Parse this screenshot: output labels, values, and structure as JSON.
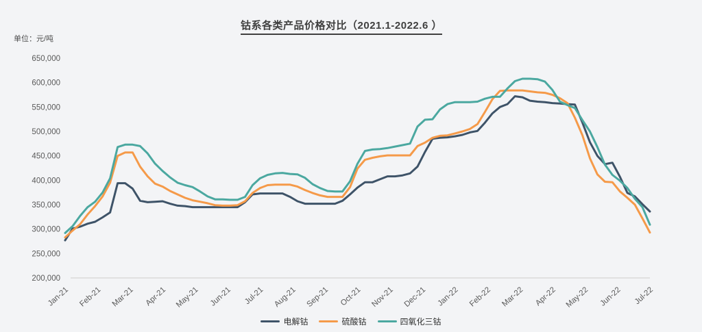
{
  "chart_data": {
    "type": "line",
    "title": "钴系各类产品价格对比（2021.1-2022.6 ）",
    "unit_label": "单位：元/吨",
    "legend_position": "bottom-center",
    "grid": false,
    "background_color": "#f3f4f6",
    "axis_line_color": "#d9d9d9",
    "axis_text_color": "#595959",
    "y_axis": {
      "min": 200000,
      "max": 650000,
      "step": 50000,
      "tick_labels": [
        "650,000",
        "600,000",
        "550,000",
        "500,000",
        "450,000",
        "400,000",
        "350,000",
        "300,000",
        "250,000",
        "200,000"
      ]
    },
    "x_axis": {
      "tick_labels": [
        "Jan-21",
        "Feb-21",
        "Mar-21",
        "Apr-21",
        "May-21",
        "Jun-21",
        "Jul-21",
        "Aug-21",
        "Sep-21",
        "Oct-21",
        "Nov-21",
        "Dec-21",
        "Jan-22",
        "Feb-22",
        "Mar-22",
        "Apr-22",
        "May-22",
        "Jun-22",
        "Jul-22"
      ],
      "sampling": "weekly points from Jan-2021 to Jul-2022 (values estimated from plot)"
    },
    "series": [
      {
        "name": "电解钴",
        "color": "#3E5368",
        "values": [
          277000,
          301000,
          305000,
          311000,
          315000,
          324000,
          334000,
          394000,
          394000,
          383000,
          358000,
          355000,
          356000,
          357000,
          352000,
          348000,
          347000,
          345000,
          345000,
          345000,
          345000,
          345000,
          345000,
          345000,
          355000,
          371000,
          373000,
          373000,
          373000,
          373000,
          366000,
          357000,
          352000,
          352000,
          352000,
          352000,
          352000,
          358000,
          371000,
          385000,
          396000,
          396000,
          402000,
          408000,
          408000,
          410000,
          414000,
          428000,
          458000,
          485000,
          487000,
          488000,
          490000,
          493000,
          498000,
          501000,
          518000,
          537000,
          550000,
          556000,
          572000,
          570000,
          563000,
          561000,
          560000,
          558000,
          557000,
          556000,
          555000,
          518000,
          478000,
          450000,
          433000,
          436000,
          407000,
          374000,
          367000,
          351000,
          336000
        ]
      },
      {
        "name": "硫酸钴",
        "color": "#F59A49",
        "values": [
          283000,
          297000,
          310000,
          330000,
          347000,
          367000,
          395000,
          450000,
          457000,
          457000,
          428000,
          408000,
          393000,
          387000,
          378000,
          371000,
          364000,
          359000,
          356000,
          353000,
          349000,
          348000,
          348000,
          349000,
          357000,
          374000,
          384000,
          390000,
          391000,
          391000,
          391000,
          387000,
          380000,
          374000,
          369000,
          366000,
          366000,
          366000,
          386000,
          424000,
          442000,
          446000,
          449000,
          451000,
          451000,
          451000,
          451000,
          470000,
          477000,
          487000,
          491000,
          492000,
          496000,
          500000,
          505000,
          515000,
          540000,
          566000,
          583000,
          584000,
          584000,
          584000,
          582000,
          580000,
          579000,
          575000,
          568000,
          558000,
          528000,
          492000,
          445000,
          412000,
          397000,
          396000,
          377000,
          364000,
          350000,
          322000,
          293000
        ]
      },
      {
        "name": "四氧化三钴",
        "color": "#4BA8A0",
        "values": [
          292000,
          306000,
          327000,
          345000,
          356000,
          375000,
          404000,
          468000,
          473000,
          473000,
          470000,
          455000,
          434000,
          419000,
          406000,
          395000,
          390000,
          386000,
          377000,
          367000,
          361000,
          361000,
          360000,
          360000,
          366000,
          390000,
          404000,
          411000,
          414000,
          415000,
          413000,
          412000,
          405000,
          392000,
          384000,
          378000,
          377000,
          377000,
          398000,
          434000,
          460000,
          463000,
          464000,
          466000,
          469000,
          472000,
          475000,
          510000,
          524000,
          525000,
          545000,
          556000,
          560000,
          560000,
          560000,
          561000,
          567000,
          571000,
          571000,
          588000,
          603000,
          608000,
          608000,
          607000,
          602000,
          585000,
          561000,
          554000,
          548000,
          523000,
          500000,
          468000,
          432000,
          411000,
          399000,
          384000,
          362000,
          345000,
          309000
        ]
      }
    ]
  }
}
